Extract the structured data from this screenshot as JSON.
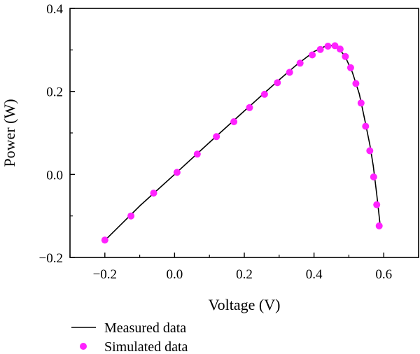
{
  "chart_data": {
    "type": "scatter",
    "xlabel": "Voltage (V)",
    "ylabel": "Power (W)",
    "xlim": [
      -0.3,
      0.7
    ],
    "ylim": [
      -0.2,
      0.4
    ],
    "x_ticks": [
      -0.2,
      0.0,
      0.2,
      0.4,
      0.6
    ],
    "x_tick_labels": [
      "−0.2",
      "0.0",
      "0.2",
      "0.4",
      "0.6"
    ],
    "y_ticks": [
      -0.2,
      0.0,
      0.2,
      0.4
    ],
    "y_tick_labels": [
      "−0.2",
      "0.0",
      "0.2",
      "0.4"
    ],
    "grid": false,
    "legend_position": "bottom-left, below plot",
    "series": [
      {
        "name": "Measured data",
        "style": "line",
        "color": "#000000",
        "x": [
          -0.2,
          -0.1,
          0.0,
          0.1,
          0.2,
          0.3,
          0.35,
          0.4,
          0.43,
          0.45,
          0.47,
          0.49,
          0.51,
          0.53,
          0.545,
          0.56,
          0.57,
          0.58,
          0.59
        ],
        "y": [
          -0.159,
          -0.076,
          0.0,
          0.077,
          0.153,
          0.228,
          0.264,
          0.296,
          0.308,
          0.311,
          0.305,
          0.283,
          0.246,
          0.194,
          0.134,
          0.072,
          0.02,
          -0.048,
          -0.124
        ]
      },
      {
        "name": "Simulated data",
        "style": "markers",
        "color": "#ff22ff",
        "x": [
          -0.2,
          -0.125,
          -0.06,
          0.007,
          0.065,
          0.12,
          0.17,
          0.215,
          0.258,
          0.295,
          0.33,
          0.36,
          0.395,
          0.418,
          0.44,
          0.46,
          0.475,
          0.49,
          0.505,
          0.52,
          0.535,
          0.548,
          0.56,
          0.571,
          0.58,
          0.587
        ],
        "y": [
          -0.158,
          -0.1,
          -0.045,
          0.005,
          0.049,
          0.091,
          0.127,
          0.161,
          0.193,
          0.221,
          0.246,
          0.268,
          0.288,
          0.301,
          0.309,
          0.31,
          0.302,
          0.284,
          0.257,
          0.219,
          0.172,
          0.116,
          0.057,
          -0.006,
          -0.073,
          -0.124
        ]
      }
    ]
  }
}
